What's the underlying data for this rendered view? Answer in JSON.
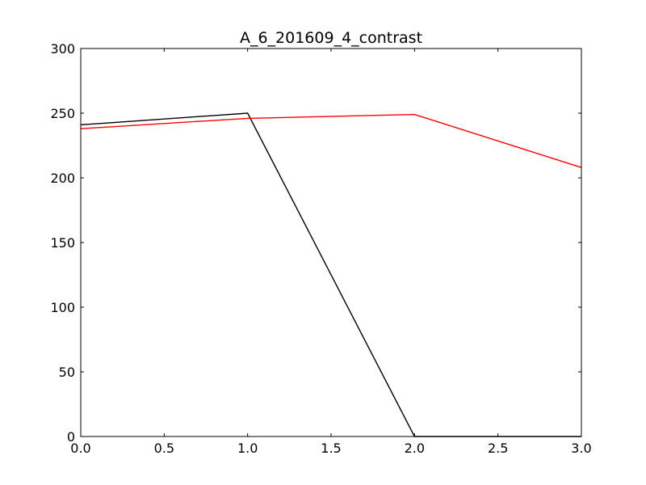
{
  "chart_data": {
    "type": "line",
    "title": "A_6_201609_4_contrast",
    "xlabel": "",
    "ylabel": "",
    "xlim": [
      0.0,
      3.0
    ],
    "ylim": [
      0,
      300
    ],
    "x_ticks": [
      0.0,
      0.5,
      1.0,
      1.5,
      2.0,
      2.5,
      3.0
    ],
    "x_tick_labels": [
      "0.0",
      "0.5",
      "1.0",
      "1.5",
      "2.0",
      "2.5",
      "3.0"
    ],
    "y_ticks": [
      0,
      50,
      100,
      150,
      200,
      250,
      300
    ],
    "y_tick_labels": [
      "0",
      "50",
      "100",
      "150",
      "200",
      "250",
      "300"
    ],
    "grid": false,
    "series": [
      {
        "color": "#000000",
        "x": [
          0,
          1,
          2,
          3
        ],
        "values": [
          241,
          250,
          0,
          0
        ]
      },
      {
        "color": "#ff0000",
        "x": [
          0,
          1,
          2,
          3
        ],
        "values": [
          238,
          246,
          249,
          208
        ]
      }
    ]
  }
}
